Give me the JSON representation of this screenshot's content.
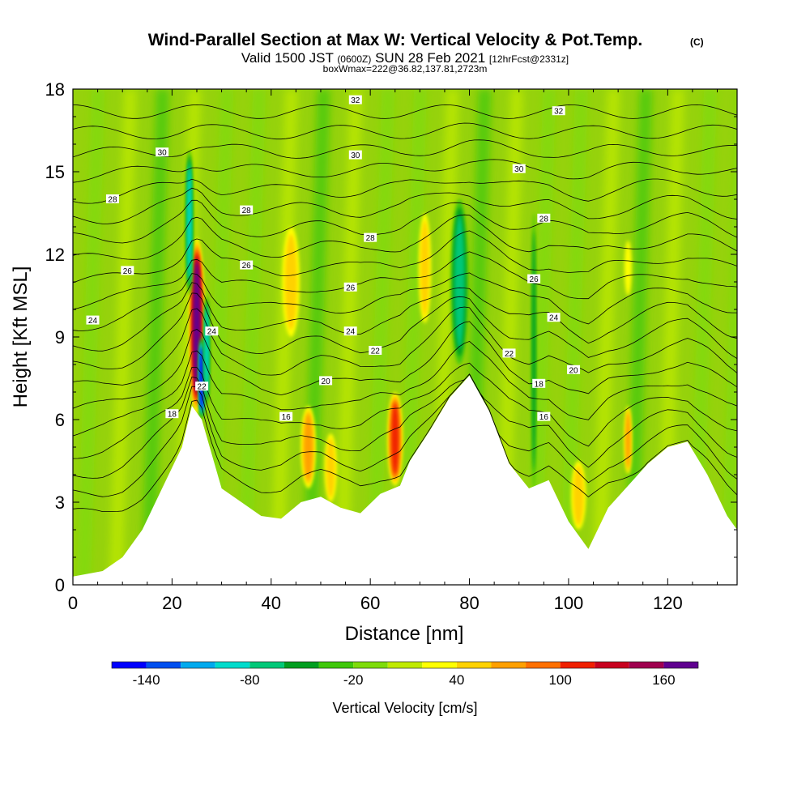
{
  "header": {
    "title": "Wind-Parallel Section at Max W: Vertical Velocity & Pot.Temp.",
    "copyright": "(C)",
    "valid_prefix": "Valid 1500 JST",
    "valid_utc": "(0600Z)",
    "valid_date": "SUN 28 Feb 2021",
    "forecast": "[12hrFcst@2331z]",
    "box_info": "boxWmax=222@36.82,137.81,2723m"
  },
  "chart_data": {
    "type": "contour",
    "xlabel": "Distance [nm]",
    "ylabel": "Height [Kft MSL]",
    "xlim": [
      0,
      134
    ],
    "ylim": [
      0,
      18
    ],
    "xticks": [
      0,
      20,
      40,
      60,
      80,
      100,
      120
    ],
    "yticks": [
      0,
      3,
      6,
      9,
      12,
      15,
      18
    ],
    "terrain": {
      "distance_nm": [
        0,
        6,
        10,
        14,
        18,
        22,
        24,
        26,
        30,
        34,
        38,
        42,
        46,
        50,
        54,
        58,
        62,
        66,
        68,
        72,
        76,
        80,
        84,
        88,
        92,
        96,
        100,
        104,
        108,
        112,
        116,
        120,
        124,
        128,
        132,
        134
      ],
      "height_kft": [
        0.3,
        0.5,
        1.0,
        2.0,
        3.5,
        5.0,
        6.5,
        6.0,
        3.5,
        3.0,
        2.5,
        2.4,
        3.0,
        3.2,
        2.8,
        2.6,
        3.3,
        3.6,
        4.5,
        5.6,
        6.8,
        7.6,
        6.3,
        4.4,
        3.5,
        3.8,
        2.3,
        1.3,
        2.8,
        3.6,
        4.4,
        5.0,
        5.2,
        4.0,
        2.5,
        2.0
      ]
    },
    "vertical_velocity_features": [
      {
        "x": 25,
        "y0": 6.2,
        "y1": 12.6,
        "w": 3.0,
        "value": 170
      },
      {
        "x": 26,
        "y0": 6.0,
        "y1": 9.0,
        "w": 1.2,
        "value": -140
      },
      {
        "x": 23.5,
        "y0": 10.5,
        "y1": 15.8,
        "w": 1.5,
        "value": -90
      },
      {
        "x": 27,
        "y0": 6.5,
        "y1": 10.5,
        "w": 1.2,
        "value": -80
      },
      {
        "x": 44,
        "y0": 9.0,
        "y1": 13.0,
        "w": 3.5,
        "value": 45
      },
      {
        "x": 47.5,
        "y0": 3.5,
        "y1": 6.5,
        "w": 3.0,
        "value": 60
      },
      {
        "x": 52,
        "y0": 3.0,
        "y1": 5.5,
        "w": 2.5,
        "value": 40
      },
      {
        "x": 65,
        "y0": 3.6,
        "y1": 7.0,
        "w": 3.0,
        "value": 110
      },
      {
        "x": 71,
        "y0": 9.5,
        "y1": 13.5,
        "w": 2.5,
        "value": 40
      },
      {
        "x": 78,
        "y0": 8.0,
        "y1": 14.0,
        "w": 3.5,
        "value": -70
      },
      {
        "x": 93,
        "y0": 3.5,
        "y1": 13.5,
        "w": 1.0,
        "value": -40
      },
      {
        "x": 102,
        "y0": 2.0,
        "y1": 4.5,
        "w": 3.0,
        "value": 50
      },
      {
        "x": 112,
        "y0": 4.0,
        "y1": 6.5,
        "w": 1.5,
        "value": 70
      },
      {
        "x": 112,
        "y0": 10.5,
        "y1": 12.5,
        "w": 1.5,
        "value": 30
      }
    ],
    "isentropes": {
      "theta_values": [
        14,
        15,
        16,
        17,
        18,
        19,
        20,
        21,
        22,
        23,
        24,
        25,
        26,
        27,
        28,
        29,
        30,
        31,
        32,
        33
      ],
      "labels": [
        {
          "x": 20,
          "y": 6.2,
          "text": "18"
        },
        {
          "x": 43,
          "y": 6.1,
          "text": "16"
        },
        {
          "x": 95,
          "y": 6.1,
          "text": "16"
        },
        {
          "x": 94,
          "y": 7.3,
          "text": "18"
        },
        {
          "x": 51,
          "y": 7.4,
          "text": "20"
        },
        {
          "x": 101,
          "y": 7.8,
          "text": "20"
        },
        {
          "x": 26,
          "y": 7.2,
          "text": "22"
        },
        {
          "x": 61,
          "y": 8.5,
          "text": "22"
        },
        {
          "x": 88,
          "y": 8.4,
          "text": "22"
        },
        {
          "x": 4,
          "y": 9.6,
          "text": "24"
        },
        {
          "x": 28,
          "y": 9.2,
          "text": "24"
        },
        {
          "x": 56,
          "y": 9.2,
          "text": "24"
        },
        {
          "x": 97,
          "y": 9.7,
          "text": "24"
        },
        {
          "x": 11,
          "y": 11.4,
          "text": "26"
        },
        {
          "x": 35,
          "y": 11.6,
          "text": "26"
        },
        {
          "x": 56,
          "y": 10.8,
          "text": "26"
        },
        {
          "x": 93,
          "y": 11.1,
          "text": "26"
        },
        {
          "x": 8,
          "y": 14.0,
          "text": "28"
        },
        {
          "x": 35,
          "y": 13.6,
          "text": "28"
        },
        {
          "x": 60,
          "y": 12.6,
          "text": "28"
        },
        {
          "x": 95,
          "y": 13.3,
          "text": "28"
        },
        {
          "x": 18,
          "y": 15.7,
          "text": "30"
        },
        {
          "x": 57,
          "y": 15.6,
          "text": "30"
        },
        {
          "x": 90,
          "y": 15.1,
          "text": "30"
        },
        {
          "x": 57,
          "y": 17.6,
          "text": "32"
        },
        {
          "x": 98,
          "y": 17.2,
          "text": "32"
        }
      ]
    },
    "colorbar": {
      "title": "Vertical Velocity [cm/s]",
      "levels": [
        -160,
        -140,
        -120,
        -100,
        -80,
        -60,
        -40,
        -20,
        0,
        20,
        40,
        60,
        80,
        100,
        120,
        140,
        160,
        180
      ],
      "colors": [
        "#0000ff",
        "#0050f0",
        "#00aaee",
        "#00dccc",
        "#00c878",
        "#009e20",
        "#3fc80a",
        "#7edc0a",
        "#c0ea00",
        "#ffff00",
        "#ffd200",
        "#ffa000",
        "#ff7000",
        "#f02000",
        "#c80020",
        "#a00050",
        "#600090"
      ],
      "tick_values": [
        -140,
        -80,
        -20,
        40,
        100,
        160
      ]
    }
  }
}
